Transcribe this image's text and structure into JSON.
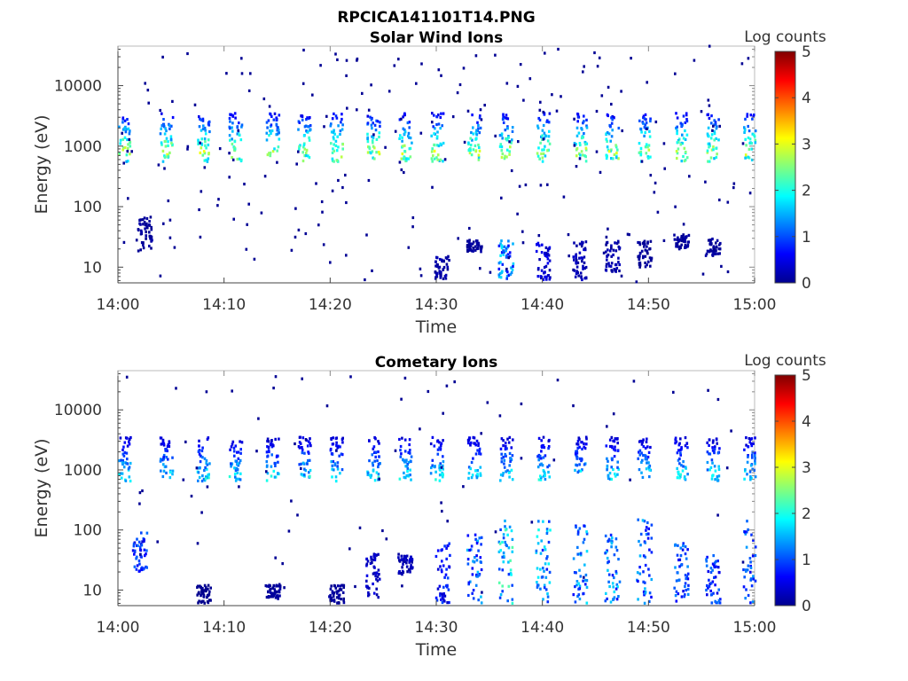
{
  "title": "RPCICA141101T14.PNG",
  "chart_data": [
    {
      "type": "heatmap",
      "title": "Solar Wind Ions",
      "xlabel": "Time",
      "ylabel": "Energy (eV)",
      "xticks": [
        "14:00",
        "14:10",
        "14:20",
        "14:30",
        "14:40",
        "14:50",
        "15:00"
      ],
      "xlim": [
        "14:00",
        "15:00"
      ],
      "yscale": "log",
      "yticks": [
        10,
        100,
        1000,
        10000
      ],
      "ytick_labels": [
        "10",
        "100",
        "1000",
        "10000"
      ],
      "ylim": [
        5.5,
        45000
      ],
      "colorbar": {
        "label": "Log counts",
        "min": 0,
        "max": 5,
        "ticks": [
          "0",
          "1",
          "2",
          "3",
          "4",
          "5"
        ],
        "colormap": "jet"
      },
      "sweep_minutes": [
        0.5,
        4.5,
        8,
        11,
        14.5,
        17.5,
        20.5,
        24,
        27,
        30,
        33.5,
        36.5,
        40,
        43.5,
        46.5,
        49.5,
        53,
        56,
        59.5
      ],
      "main_band": {
        "energy_min": 550,
        "energy_max": 3500,
        "peak_energy": 800,
        "peak_log_counts": 3.2
      },
      "low_energy_bursts": [
        {
          "minute": 2.5,
          "energy_min": 20,
          "energy_max": 70,
          "log_counts": 0.2
        },
        {
          "minute": 30.5,
          "energy_min": 6,
          "energy_max": 15,
          "log_counts": 0.3
        },
        {
          "minute": 33.5,
          "energy_min": 18,
          "energy_max": 28,
          "log_counts": 0.2
        },
        {
          "minute": 36.5,
          "energy_min": 6,
          "energy_max": 28,
          "log_counts": 1.8
        },
        {
          "minute": 40,
          "energy_min": 6,
          "energy_max": 28,
          "log_counts": 0.6
        },
        {
          "minute": 43.5,
          "energy_min": 6,
          "energy_max": 28,
          "log_counts": 0.4
        },
        {
          "minute": 46.5,
          "energy_min": 8,
          "energy_max": 28,
          "log_counts": 0.3
        },
        {
          "minute": 49.5,
          "energy_min": 10,
          "energy_max": 28,
          "log_counts": 0.2
        },
        {
          "minute": 53,
          "energy_min": 20,
          "energy_max": 35,
          "log_counts": 0.2
        },
        {
          "minute": 56,
          "energy_min": 15,
          "energy_max": 30,
          "log_counts": 0.2
        }
      ]
    },
    {
      "type": "heatmap",
      "title": "Cometary Ions",
      "xlabel": "Time",
      "ylabel": "Energy (eV)",
      "xticks": [
        "14:00",
        "14:10",
        "14:20",
        "14:30",
        "14:40",
        "14:50",
        "15:00"
      ],
      "xlim": [
        "14:00",
        "15:00"
      ],
      "yscale": "log",
      "yticks": [
        10,
        100,
        1000,
        10000
      ],
      "ytick_labels": [
        "10",
        "100",
        "1000",
        "10000"
      ],
      "ylim": [
        5.5,
        45000
      ],
      "colorbar": {
        "label": "Log counts",
        "min": 0,
        "max": 5,
        "ticks": [
          "0",
          "1",
          "2",
          "3",
          "4",
          "5"
        ],
        "colormap": "jet"
      },
      "sweep_minutes": [
        0.5,
        4.5,
        8,
        11,
        14.5,
        17.5,
        20.5,
        24,
        27,
        30,
        33.5,
        36.5,
        40,
        43.5,
        46.5,
        49.5,
        53,
        56,
        59.5
      ],
      "main_band": {
        "energy_min": 650,
        "energy_max": 3500,
        "peak_energy": 750,
        "peak_log_counts": 2.2
      },
      "low_energy_bursts": [
        {
          "minute": 2,
          "energy_min": 20,
          "energy_max": 90,
          "log_counts": 1.2
        },
        {
          "minute": 8,
          "energy_min": 6,
          "energy_max": 12,
          "log_counts": 0.1
        },
        {
          "minute": 14.5,
          "energy_min": 7,
          "energy_max": 12,
          "log_counts": 0.2
        },
        {
          "minute": 20.5,
          "energy_min": 6,
          "energy_max": 12,
          "log_counts": 0.2
        },
        {
          "minute": 24,
          "energy_min": 7,
          "energy_max": 40,
          "log_counts": 0.5
        },
        {
          "minute": 27,
          "energy_min": 18,
          "energy_max": 40,
          "log_counts": 0.4
        },
        {
          "minute": 30.5,
          "energy_min": 6,
          "energy_max": 60,
          "log_counts": 1.0
        },
        {
          "minute": 33.5,
          "energy_min": 6,
          "energy_max": 90,
          "log_counts": 1.6
        },
        {
          "minute": 36.5,
          "energy_min": 6,
          "energy_max": 150,
          "log_counts": 2.3
        },
        {
          "minute": 40,
          "energy_min": 6,
          "energy_max": 150,
          "log_counts": 2.0
        },
        {
          "minute": 43.5,
          "energy_min": 6,
          "energy_max": 120,
          "log_counts": 1.8
        },
        {
          "minute": 46.5,
          "energy_min": 6,
          "energy_max": 90,
          "log_counts": 1.8
        },
        {
          "minute": 49.5,
          "energy_min": 6,
          "energy_max": 150,
          "log_counts": 1.6
        },
        {
          "minute": 53,
          "energy_min": 6,
          "energy_max": 60,
          "log_counts": 1.4
        },
        {
          "minute": 56,
          "energy_min": 6,
          "energy_max": 40,
          "log_counts": 1.2
        },
        {
          "minute": 59.5,
          "energy_min": 6,
          "energy_max": 150,
          "log_counts": 1.4
        }
      ]
    }
  ]
}
